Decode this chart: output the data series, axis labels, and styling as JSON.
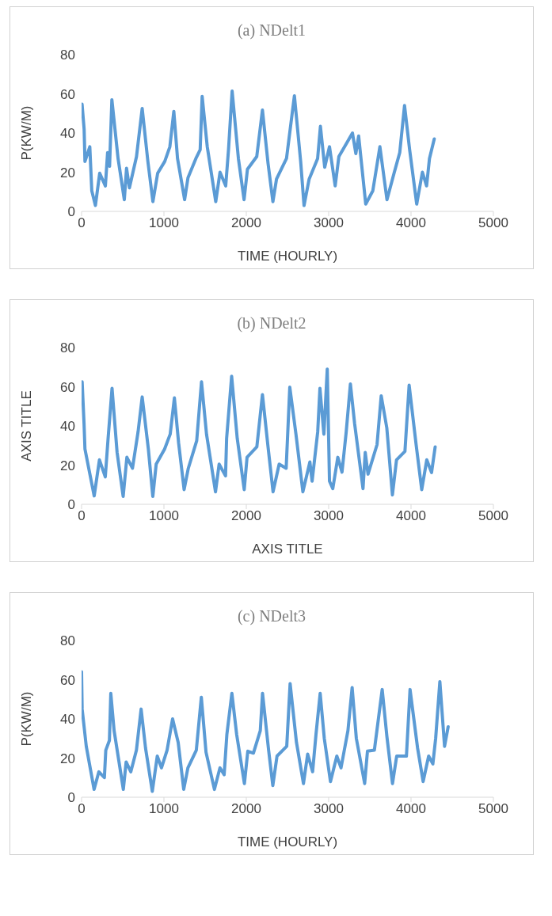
{
  "chart_data": [
    {
      "type": "line",
      "title": "(a) NDelt1",
      "xlabel": "TIME (HOURLY)",
      "ylabel": "P(KW/M)",
      "xlim": [
        0,
        5000
      ],
      "xticks": [
        0,
        1000,
        2000,
        3000,
        4000,
        5000
      ],
      "ylim": [
        0,
        80
      ],
      "yticks": [
        0,
        20,
        40,
        60,
        80
      ],
      "series": [
        {
          "color": "#5b9bd5",
          "x": [
            6,
            31,
            41,
            100,
            124,
            168,
            220,
            289,
            316,
            340,
            368,
            443,
            519,
            546,
            581,
            667,
            736,
            805,
            866,
            924,
            1010,
            1072,
            1120,
            1165,
            1251,
            1292,
            1388,
            1440,
            1464,
            1526,
            1629,
            1681,
            1750,
            1784,
            1828,
            1904,
            1973,
            2014,
            2127,
            2196,
            2264,
            2323,
            2367,
            2488,
            2584,
            2660,
            2701,
            2763,
            2866,
            2900,
            2952,
            3010,
            3079,
            3124,
            3227,
            3289,
            3330,
            3364,
            3450,
            3536,
            3622,
            3708,
            3794,
            3863,
            3921,
            3983,
            4069,
            4138,
            4189,
            4224,
            4282
          ],
          "values": [
            54.7,
            42,
            25.5,
            33,
            10.5,
            3,
            19.5,
            13,
            30,
            23,
            57,
            27,
            6,
            22,
            12,
            28,
            52.5,
            25.5,
            5,
            19.5,
            25.5,
            33,
            51,
            27,
            6,
            17.2,
            27,
            31.5,
            58.7,
            33,
            5,
            20,
            13,
            31.5,
            61.4,
            27,
            6,
            21.5,
            28,
            51.7,
            24.5,
            5,
            16.5,
            27,
            59,
            25.5,
            3,
            16.5,
            27,
            43.4,
            22.5,
            33,
            13,
            28,
            35.5,
            40,
            29.5,
            38.5,
            3.7,
            10.5,
            33,
            6,
            19.5,
            30,
            54,
            31.5,
            3.7,
            20,
            13,
            27,
            37
          ]
        }
      ]
    },
    {
      "type": "line",
      "title": "(b) NDelt2",
      "xlabel": "AXIS TITLE",
      "ylabel": "AXIS TITLE",
      "xlim": [
        0,
        5000
      ],
      "xticks": [
        0,
        1000,
        2000,
        3000,
        4000,
        5000
      ],
      "ylim": [
        0,
        80
      ],
      "yticks": [
        0,
        20,
        40,
        60,
        80
      ],
      "series": [
        {
          "color": "#5b9bd5",
          "x": [
            7,
            30,
            41,
            92,
            153,
            217,
            288,
            322,
            370,
            431,
            505,
            550,
            618,
            686,
            736,
            811,
            865,
            906,
            1008,
            1076,
            1127,
            1178,
            1245,
            1296,
            1398,
            1456,
            1517,
            1626,
            1670,
            1748,
            1761,
            1822,
            1890,
            1975,
            2009,
            2128,
            2196,
            2264,
            2325,
            2399,
            2484,
            2528,
            2603,
            2687,
            2772,
            2799,
            2867,
            2894,
            2942,
            2983,
            3010,
            3050,
            3111,
            3162,
            3213,
            3264,
            3315,
            3417,
            3444,
            3478,
            3587,
            3638,
            3706,
            3774,
            3824,
            3926,
            3977,
            4062,
            4130,
            4191,
            4249,
            4293
          ],
          "values": [
            62.5,
            41.2,
            28.2,
            17.3,
            4.3,
            22.7,
            14,
            33.6,
            59.2,
            26.6,
            4,
            24,
            18.4,
            37,
            54.8,
            28.2,
            4,
            20.5,
            28.2,
            35.8,
            54.3,
            31.4,
            7.5,
            18.4,
            32.5,
            62.5,
            35.8,
            6.4,
            20.5,
            14.5,
            33.6,
            65.4,
            33.6,
            7.5,
            24,
            29.3,
            56,
            29.3,
            6.4,
            20.5,
            18.4,
            59.8,
            35.8,
            6.4,
            21.6,
            11.8,
            37,
            59.2,
            35.8,
            69,
            11.8,
            8,
            24,
            16.4,
            37,
            61.4,
            41.2,
            8,
            26.5,
            15.4,
            30.4,
            55.4,
            39,
            4.8,
            22.7,
            27,
            60.8,
            30.4,
            7.5,
            22.7,
            16.2,
            29.3
          ]
        }
      ]
    },
    {
      "type": "line",
      "title": "(c) NDelt3",
      "xlabel": "TIME (HOURLY)",
      "ylabel": "P(KW/M)",
      "xlim": [
        0,
        5000
      ],
      "xticks": [
        0,
        1000,
        2000,
        3000,
        4000,
        5000
      ],
      "ylim": [
        0,
        80
      ],
      "yticks": [
        0,
        20,
        40,
        60,
        80
      ],
      "series": [
        {
          "color": "#5b9bd5",
          "x": [
            0,
            7,
            57,
            152,
            210,
            277,
            294,
            338,
            355,
            395,
            507,
            541,
            598,
            666,
            723,
            777,
            859,
            919,
            970,
            1038,
            1105,
            1173,
            1240,
            1291,
            1393,
            1454,
            1511,
            1613,
            1680,
            1731,
            1764,
            1825,
            1883,
            1977,
            2018,
            2086,
            2170,
            2197,
            2271,
            2322,
            2373,
            2491,
            2532,
            2609,
            2694,
            2745,
            2805,
            2846,
            2897,
            2947,
            3022,
            3099,
            3150,
            3234,
            3285,
            3336,
            3437,
            3471,
            3555,
            3650,
            3707,
            3775,
            3826,
            3944,
            3988,
            4080,
            4147,
            4214,
            4265,
            4299,
            4350,
            4407,
            4451
          ],
          "values": [
            64,
            45,
            26,
            4,
            13,
            10,
            24,
            29,
            53,
            34,
            4,
            18,
            13,
            24,
            45,
            25,
            3,
            21,
            15,
            24,
            40,
            28,
            4,
            15,
            24,
            51,
            23,
            4,
            15,
            11.5,
            32,
            53,
            32,
            7,
            23.5,
            22.5,
            34,
            53,
            24,
            6,
            21,
            26,
            58,
            28,
            7,
            22,
            13,
            32,
            53,
            30,
            8,
            21,
            15,
            34,
            56,
            30,
            7,
            23.5,
            24,
            55,
            31,
            7,
            21,
            21,
            55,
            25,
            8,
            21,
            17,
            30,
            59,
            26,
            36
          ]
        }
      ]
    }
  ]
}
